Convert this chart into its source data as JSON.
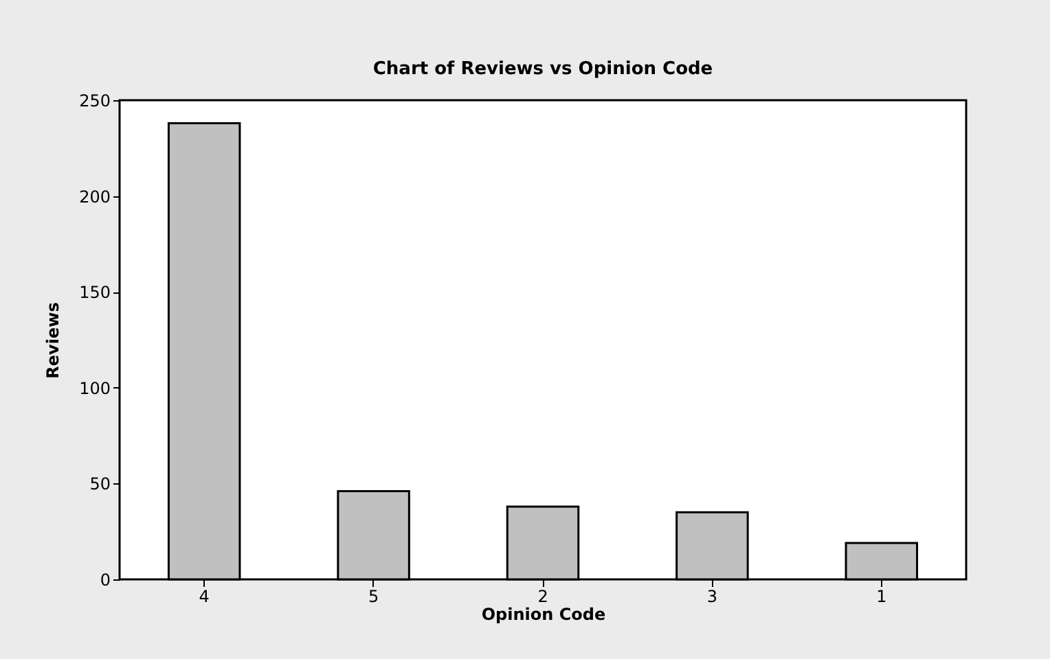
{
  "chart_data": {
    "type": "bar",
    "title": "Chart of Reviews vs Opinion Code",
    "xlabel": "Opinion Code",
    "ylabel": "Reviews",
    "categories": [
      "4",
      "5",
      "2",
      "3",
      "1"
    ],
    "values": [
      238,
      46,
      38,
      35,
      19
    ],
    "color": "#c0c0c0",
    "ylim": [
      0,
      250
    ],
    "yticks": [
      0,
      50,
      100,
      150,
      200,
      250
    ],
    "grid": false
  }
}
